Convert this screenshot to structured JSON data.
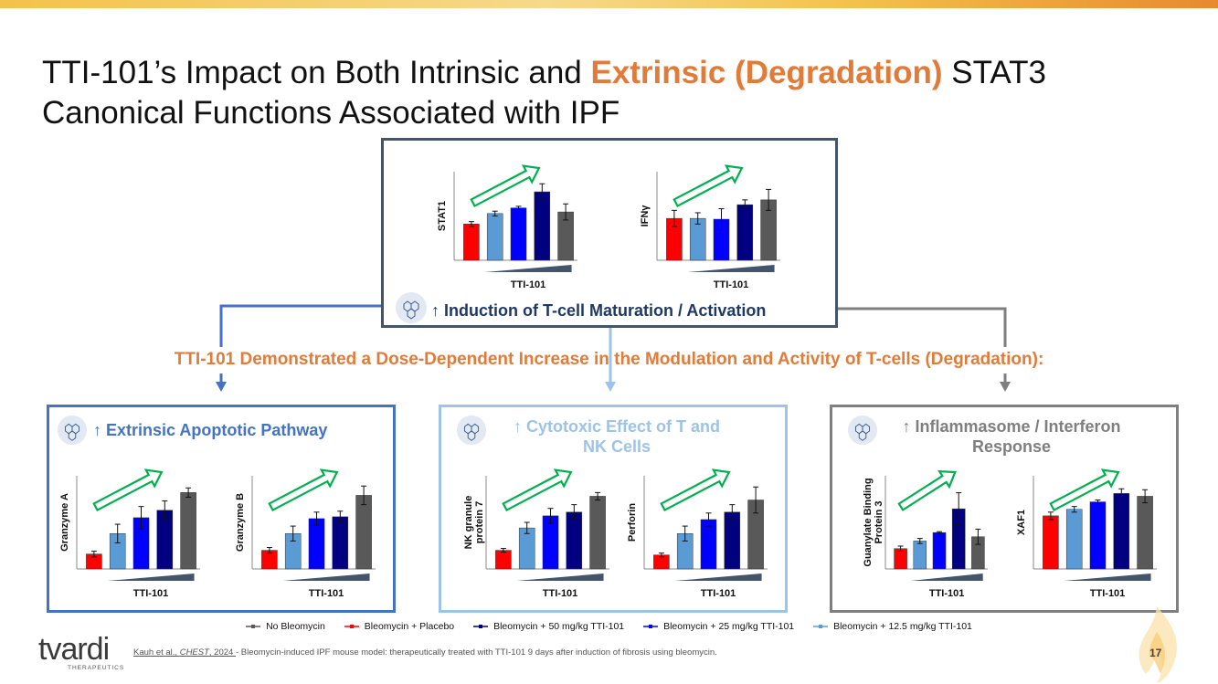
{
  "title": {
    "part1": "TTI-101’s Impact on Both Intrinsic and ",
    "highlight": "Extrinsic (Degradation)",
    "part2": " STAT3",
    "line2": "Canonical Functions Associated with IPF"
  },
  "top_panel": {
    "label": "Induction of T-cell Maturation / Activation"
  },
  "banner": "TTI-101 Demonstrated a Dose-Dependent Increase in the Modulation and Activity of T-cells (Degradation):",
  "panels": [
    {
      "label": "Extrinsic Apoptotic Pathway",
      "color": "#4472c4"
    },
    {
      "label_line1": "Cytotoxic Effect of T and",
      "label_line2": "NK Cells",
      "color": "#9dc3e6"
    },
    {
      "label_line1": "Inflammasome / Interferon",
      "label_line2": "Response",
      "color": "#7f7f7f"
    }
  ],
  "up_arrow": "↑",
  "colors": {
    "placebo": "#ff0000",
    "dose12": "#5b9bd5",
    "dose25": "#0000ff",
    "dose50": "#000080",
    "no_bleo": "#595959",
    "orange": "#e07b39",
    "green": "#00b050"
  },
  "legend": [
    {
      "label": "No Bleomycin",
      "color": "#595959"
    },
    {
      "label": "Bleomycin + Placebo",
      "color": "#ff0000"
    },
    {
      "label": "Bleomycin + 50 mg/kg TTI-101",
      "color": "#000080"
    },
    {
      "label": "Bleomycin + 25 mg/kg TTI-101",
      "color": "#0000ff"
    },
    {
      "label": "Bleomycin + 12.5 mg/kg TTI-101",
      "color": "#5b9bd5"
    }
  ],
  "chart_data": [
    {
      "type": "bar",
      "ylabel": "STAT1",
      "xlabel": "TTI-101",
      "categories": [
        "Bleomycin + Placebo",
        "Bleomycin + 12.5 mg/kg TTI-101",
        "Bleomycin + 25 mg/kg TTI-101",
        "Bleomycin + 50 mg/kg TTI-101",
        "No Bleomycin"
      ],
      "values": [
        0.45,
        0.58,
        0.65,
        0.85,
        0.6
      ],
      "errors": [
        0.03,
        0.03,
        0.02,
        0.1,
        0.1
      ],
      "ylim": [
        0,
        1.1
      ]
    },
    {
      "type": "bar",
      "ylabel": "IFNγ",
      "xlabel": "TTI-101",
      "categories": [
        "Bleomycin + Placebo",
        "Bleomycin + 12.5 mg/kg TTI-101",
        "Bleomycin + 25 mg/kg TTI-101",
        "Bleomycin + 50 mg/kg TTI-101",
        "No Bleomycin"
      ],
      "values": [
        0.52,
        0.52,
        0.51,
        0.69,
        0.75
      ],
      "errors": [
        0.1,
        0.07,
        0.13,
        0.06,
        0.13
      ],
      "ylim": [
        0,
        1.1
      ]
    },
    {
      "type": "bar",
      "ylabel": "Granzyme A",
      "xlabel": "TTI-101",
      "categories": [
        "Bleomycin + Placebo",
        "Bleomycin + 12.5 mg/kg TTI-101",
        "Bleomycin + 25 mg/kg TTI-101",
        "Bleomycin + 50 mg/kg TTI-101",
        "No Bleomycin"
      ],
      "values": [
        0.16,
        0.38,
        0.55,
        0.63,
        0.82
      ],
      "errors": [
        0.03,
        0.1,
        0.12,
        0.1,
        0.05
      ],
      "ylim": [
        0,
        1.0
      ]
    },
    {
      "type": "bar",
      "ylabel": "Granzyme B",
      "xlabel": "TTI-101",
      "categories": [
        "Bleomycin + Placebo",
        "Bleomycin + 12.5 mg/kg TTI-101",
        "Bleomycin + 25 mg/kg TTI-101",
        "Bleomycin + 50 mg/kg TTI-101",
        "No Bleomycin"
      ],
      "values": [
        0.2,
        0.38,
        0.54,
        0.56,
        0.79
      ],
      "errors": [
        0.03,
        0.08,
        0.07,
        0.06,
        0.1
      ],
      "ylim": [
        0,
        1.0
      ]
    },
    {
      "type": "bar",
      "ylabel": "NK granule protein 7",
      "xlabel": "TTI-101",
      "categories": [
        "Bleomycin + Placebo",
        "Bleomycin + 12.5 mg/kg TTI-101",
        "Bleomycin + 25 mg/kg TTI-101",
        "Bleomycin + 50 mg/kg TTI-101",
        "No Bleomycin"
      ],
      "values": [
        0.2,
        0.44,
        0.57,
        0.61,
        0.78
      ],
      "errors": [
        0.02,
        0.06,
        0.08,
        0.08,
        0.04
      ],
      "ylim": [
        0,
        1.0
      ]
    },
    {
      "type": "bar",
      "ylabel": "Perforin",
      "xlabel": "TTI-101",
      "categories": [
        "Bleomycin + Placebo",
        "Bleomycin + 12.5 mg/kg TTI-101",
        "Bleomycin + 25 mg/kg TTI-101",
        "Bleomycin + 50 mg/kg TTI-101",
        "No Bleomycin"
      ],
      "values": [
        0.15,
        0.38,
        0.53,
        0.61,
        0.74
      ],
      "errors": [
        0.02,
        0.08,
        0.07,
        0.08,
        0.14
      ],
      "ylim": [
        0,
        1.0
      ]
    },
    {
      "type": "bar",
      "ylabel": "Guanylate Binding Protein 3",
      "xlabel": "TTI-101",
      "categories": [
        "Bleomycin + Placebo",
        "Bleomycin + 12.5 mg/kg TTI-101",
        "Bleomycin + 25 mg/kg TTI-101",
        "Bleomycin + 50 mg/kg TTI-101",
        "No Bleomycin"
      ],
      "values": [
        0.24,
        0.33,
        0.43,
        0.71,
        0.38
      ],
      "errors": [
        0.03,
        0.03,
        0.01,
        0.19,
        0.09
      ],
      "ylim": [
        0,
        1.1
      ]
    },
    {
      "type": "bar",
      "ylabel": "XAF1",
      "xlabel": "TTI-101",
      "categories": [
        "Bleomycin + Placebo",
        "Bleomycin + 12.5 mg/kg TTI-101",
        "Bleomycin + 25 mg/kg TTI-101",
        "Bleomycin + 50 mg/kg TTI-101",
        "No Bleomycin"
      ],
      "values": [
        0.57,
        0.64,
        0.72,
        0.81,
        0.78
      ],
      "errors": [
        0.04,
        0.03,
        0.02,
        0.05,
        0.07
      ],
      "ylim": [
        0,
        1.0
      ]
    }
  ],
  "footnote": {
    "cite_part1": "Kauh et al., ",
    "cite_italic": "CHEST",
    "cite_part2": ", 2024 ",
    "text": "- Bleomycin-induced IPF mouse model: therapeutically treated with TTI-101 9 days after induction of fibrosis using bleomycin."
  },
  "logo": {
    "name": "tvardi",
    "sub": "THERAPEUTICS"
  },
  "page_number": "17"
}
